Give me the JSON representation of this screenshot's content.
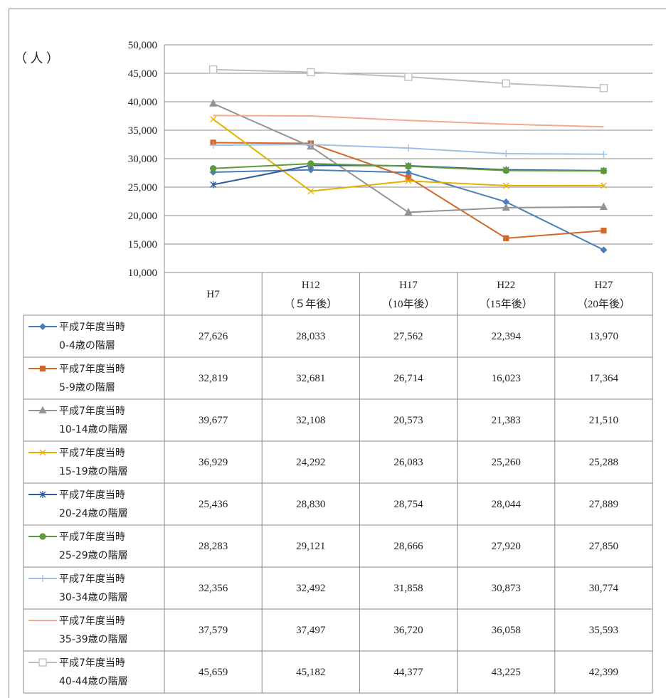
{
  "chart_data": {
    "type": "line",
    "y_label": "（ 人 ）",
    "categories": [
      "H7",
      "H12",
      "H17",
      "H22",
      "H27"
    ],
    "category_sublabels": [
      null,
      "（５年後）",
      "（10年後）",
      "（15年後）",
      "（20年後）"
    ],
    "ylim": [
      10000,
      50000
    ],
    "yticks": [
      {
        "value": 10000,
        "label": "10,000"
      },
      {
        "value": 15000,
        "label": "15,000"
      },
      {
        "value": 20000,
        "label": "20,000"
      },
      {
        "value": 25000,
        "label": "25,000"
      },
      {
        "value": 30000,
        "label": "30,000"
      },
      {
        "value": 35000,
        "label": "35,000"
      },
      {
        "value": 40000,
        "label": "40,000"
      },
      {
        "value": 45000,
        "label": "45,000"
      },
      {
        "value": 50000,
        "label": "50,000"
      }
    ],
    "grid": true,
    "series": [
      {
        "name": "平成7年度当時\n0-4歳の階層",
        "color": "#4a7ebb",
        "marker": "diamond",
        "values": [
          27626,
          28033,
          27562,
          22394,
          13970
        ],
        "value_labels": [
          "27,626",
          "28,033",
          "27,562",
          "22,394",
          "13,970"
        ]
      },
      {
        "name": "平成7年度当時\n5-9歳の階層",
        "color": "#d0692a",
        "marker": "square",
        "values": [
          32819,
          32681,
          26714,
          16023,
          17364
        ],
        "value_labels": [
          "32,819",
          "32,681",
          "26,714",
          "16,023",
          "17,364"
        ]
      },
      {
        "name": "平成7年度当時\n10-14歳の階層",
        "color": "#939393",
        "marker": "triangle",
        "values": [
          39677,
          32108,
          20573,
          21383,
          21510
        ],
        "value_labels": [
          "39,677",
          "32,108",
          "20,573",
          "21,383",
          "21,510"
        ]
      },
      {
        "name": "平成7年度当時\n15-19歳の階層",
        "color": "#e6b000",
        "marker": "x",
        "values": [
          36929,
          24292,
          26083,
          25260,
          25288
        ],
        "value_labels": [
          "36,929",
          "24,292",
          "26,083",
          "25,260",
          "25,288"
        ]
      },
      {
        "name": "平成7年度当時\n20-24歳の階層",
        "color": "#30599e",
        "marker": "star",
        "values": [
          25436,
          28830,
          28754,
          28044,
          27889
        ],
        "value_labels": [
          "25,436",
          "28,830",
          "28,754",
          "28,044",
          "27,889"
        ]
      },
      {
        "name": "平成7年度当時\n25-29歳の階層",
        "color": "#5e9a38",
        "marker": "circle",
        "values": [
          28283,
          29121,
          28666,
          27920,
          27850
        ],
        "value_labels": [
          "28,283",
          "29,121",
          "28,666",
          "27,920",
          "27,850"
        ]
      },
      {
        "name": "平成7年度当時\n30-34歳の階層",
        "color": "#9cc1e4",
        "marker": "plus",
        "values": [
          32356,
          32492,
          31858,
          30873,
          30774
        ],
        "value_labels": [
          "32,356",
          "32,492",
          "31,858",
          "30,873",
          "30,774"
        ]
      },
      {
        "name": "平成7年度当時\n35-39歳の階層",
        "color": "#f4a98a",
        "marker": "none",
        "values": [
          37579,
          37497,
          36720,
          36058,
          35593
        ],
        "value_labels": [
          "37,579",
          "37,497",
          "36,720",
          "36,058",
          "35,593"
        ]
      },
      {
        "name": "平成7年度当時\n40-44歳の階層",
        "color": "#bdbdbd",
        "marker": "open-square",
        "values": [
          45659,
          45182,
          44377,
          43225,
          42399
        ],
        "value_labels": [
          "45,659",
          "45,182",
          "44,377",
          "43,225",
          "42,399"
        ]
      }
    ]
  }
}
